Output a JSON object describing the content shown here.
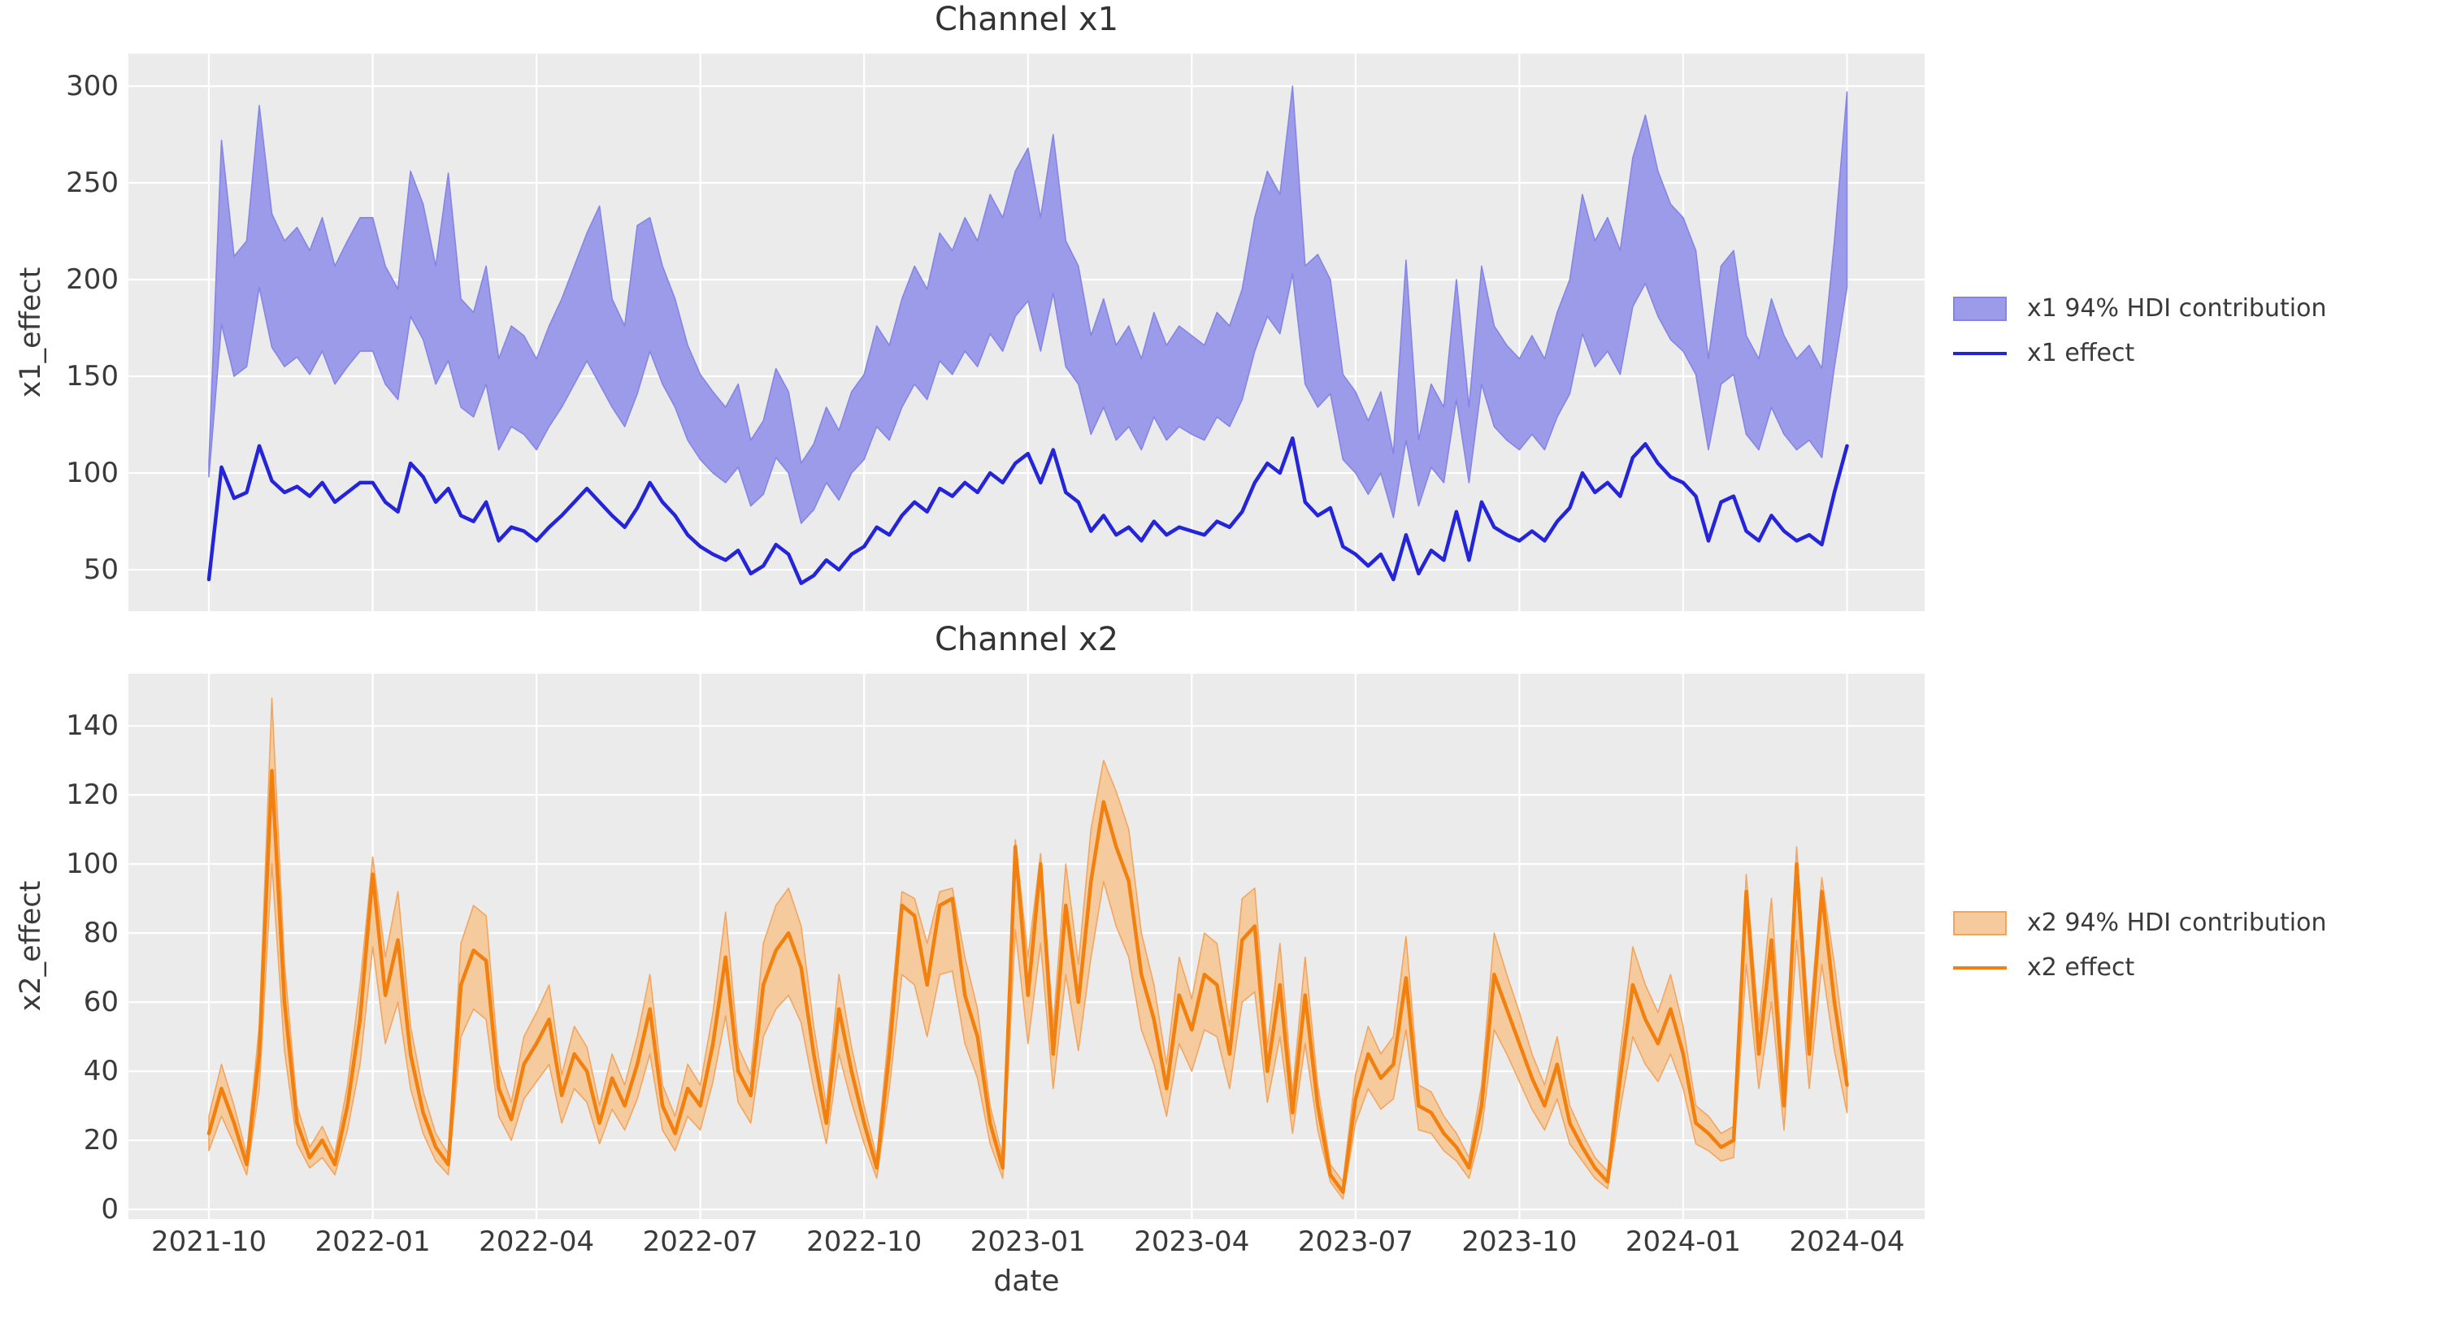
{
  "figure": {
    "background": "#ffffff",
    "axes_background": "#ebebeb",
    "grid_color": "#ffffff",
    "text_color": "#3a3a3a"
  },
  "xaxis": {
    "label": "date",
    "tick_labels": [
      "2021-10",
      "2022-01",
      "2022-04",
      "2022-07",
      "2022-10",
      "2023-01",
      "2023-04",
      "2023-07",
      "2023-10",
      "2024-01",
      "2024-04"
    ]
  },
  "chart_data": [
    {
      "type": "line",
      "channel": "x1",
      "title": "Channel x1",
      "ylabel": "x1_effect",
      "ylim": [
        28.6,
        316.8
      ],
      "yticks": [
        50,
        100,
        150,
        200,
        250,
        300
      ],
      "grid": true,
      "x_start_date": "2021-10-03",
      "x_freq": "weekly",
      "n_points": 131,
      "legend": [
        {
          "label": "x1 94% HDI contribution",
          "type": "patch"
        },
        {
          "label": "x1 effect",
          "type": "line"
        }
      ],
      "colors": {
        "line": "#2424d9",
        "band_fill": "#9b9be9",
        "band_edge": "#8585e5"
      },
      "series": [
        {
          "name": "x1 effect",
          "values": [
            45,
            103,
            87,
            90,
            114,
            96,
            90,
            93,
            88,
            95,
            85,
            90,
            95,
            95,
            85,
            80,
            105,
            98,
            85,
            92,
            78,
            75,
            85,
            65,
            72,
            70,
            65,
            72,
            78,
            85,
            92,
            85,
            78,
            72,
            82,
            95,
            85,
            78,
            68,
            62,
            58,
            55,
            60,
            48,
            52,
            63,
            58,
            43,
            47,
            55,
            50,
            58,
            62,
            72,
            68,
            78,
            85,
            80,
            92,
            88,
            95,
            90,
            100,
            95,
            105,
            110,
            95,
            112,
            90,
            85,
            70,
            78,
            68,
            72,
            65,
            75,
            68,
            72,
            70,
            68,
            75,
            72,
            80,
            95,
            105,
            100,
            118,
            85,
            78,
            82,
            62,
            58,
            52,
            58,
            45,
            68,
            48,
            60,
            55,
            80,
            55,
            85,
            72,
            68,
            65,
            70,
            65,
            75,
            82,
            100,
            90,
            95,
            88,
            108,
            115,
            105,
            98,
            95,
            88,
            65,
            85,
            88,
            70,
            65,
            78,
            70,
            65,
            68,
            63,
            90,
            114
          ]
        },
        {
          "name": "x1 94% HDI lower",
          "values": [
            98,
            177,
            150,
            155,
            196,
            165,
            155,
            160,
            151,
            163,
            146,
            155,
            163,
            163,
            146,
            138,
            181,
            169,
            146,
            158,
            134,
            129,
            146,
            112,
            124,
            120,
            112,
            124,
            134,
            146,
            158,
            146,
            134,
            124,
            141,
            163,
            146,
            134,
            117,
            107,
            100,
            95,
            103,
            83,
            89,
            108,
            100,
            74,
            81,
            95,
            86,
            100,
            107,
            124,
            117,
            134,
            146,
            138,
            158,
            151,
            163,
            155,
            172,
            163,
            181,
            189,
            163,
            193,
            155,
            146,
            120,
            134,
            117,
            124,
            112,
            129,
            117,
            124,
            120,
            117,
            129,
            124,
            138,
            163,
            181,
            172,
            203,
            146,
            134,
            141,
            107,
            100,
            89,
            100,
            77,
            117,
            83,
            103,
            95,
            138,
            95,
            146,
            124,
            117,
            112,
            120,
            112,
            129,
            141,
            172,
            155,
            163,
            151,
            186,
            198,
            181,
            169,
            163,
            151,
            112,
            146,
            151,
            120,
            112,
            134,
            120,
            112,
            117,
            108,
            155,
            196
          ]
        },
        {
          "name": "x1 94% HDI upper",
          "values": [
            106,
            272,
            212,
            220,
            290,
            234,
            220,
            227,
            215,
            232,
            207,
            220,
            232,
            232,
            207,
            195,
            256,
            239,
            207,
            255,
            190,
            183,
            207,
            159,
            176,
            171,
            159,
            176,
            190,
            207,
            224,
            238,
            190,
            176,
            228,
            232,
            207,
            190,
            166,
            151,
            142,
            134,
            146,
            117,
            127,
            154,
            142,
            105,
            115,
            134,
            122,
            142,
            151,
            176,
            166,
            190,
            207,
            195,
            224,
            215,
            232,
            220,
            244,
            232,
            256,
            268,
            232,
            275,
            220,
            207,
            171,
            190,
            166,
            176,
            159,
            183,
            166,
            176,
            171,
            166,
            183,
            176,
            195,
            232,
            256,
            244,
            300,
            207,
            213,
            200,
            151,
            142,
            127,
            142,
            110,
            210,
            117,
            146,
            134,
            200,
            134,
            207,
            176,
            166,
            159,
            171,
            159,
            183,
            200,
            244,
            220,
            232,
            215,
            263,
            285,
            256,
            239,
            232,
            215,
            159,
            207,
            215,
            171,
            159,
            190,
            171,
            159,
            166,
            154,
            220,
            297
          ]
        }
      ]
    },
    {
      "type": "line",
      "channel": "x2",
      "title": "Channel x2",
      "ylabel": "x2_effect",
      "ylim": [
        -2.8,
        155.1
      ],
      "yticks": [
        0,
        20,
        40,
        60,
        80,
        100,
        120,
        140
      ],
      "grid": true,
      "x_start_date": "2021-10-03",
      "x_freq": "weekly",
      "n_points": 131,
      "legend": [
        {
          "label": "x2 94% HDI contribution",
          "type": "patch"
        },
        {
          "label": "x2 effect",
          "type": "line"
        }
      ],
      "colors": {
        "line": "#f1800f",
        "band_fill": "#f5cb9e",
        "band_edge": "#f2a55f"
      },
      "series": [
        {
          "name": "x2 effect",
          "values": [
            22,
            35,
            25,
            13,
            45,
            127,
            60,
            25,
            15,
            20,
            13,
            30,
            55,
            97,
            62,
            78,
            45,
            28,
            18,
            13,
            65,
            75,
            72,
            35,
            26,
            42,
            48,
            55,
            33,
            45,
            40,
            25,
            38,
            30,
            42,
            58,
            30,
            22,
            35,
            30,
            48,
            73,
            40,
            33,
            65,
            75,
            80,
            70,
            45,
            25,
            58,
            40,
            25,
            12,
            45,
            88,
            85,
            65,
            88,
            90,
            62,
            50,
            25,
            12,
            105,
            62,
            100,
            45,
            88,
            60,
            95,
            118,
            105,
            95,
            68,
            55,
            35,
            62,
            52,
            68,
            65,
            45,
            78,
            82,
            40,
            65,
            28,
            62,
            30,
            10,
            5,
            32,
            45,
            38,
            42,
            67,
            30,
            28,
            22,
            18,
            12,
            30,
            68,
            58,
            48,
            38,
            30,
            42,
            25,
            18,
            12,
            8,
            38,
            65,
            55,
            48,
            58,
            45,
            25,
            22,
            18,
            20,
            92,
            45,
            78,
            30,
            100,
            45,
            92,
            60,
            36
          ]
        },
        {
          "name": "x2 94% HDI lower",
          "values": [
            17,
            27,
            19,
            10,
            35,
            100,
            46,
            19,
            12,
            15,
            10,
            23,
            42,
            76,
            48,
            60,
            35,
            22,
            14,
            10,
            50,
            58,
            55,
            27,
            20,
            32,
            37,
            42,
            25,
            35,
            31,
            19,
            29,
            23,
            32,
            45,
            23,
            17,
            27,
            23,
            37,
            56,
            31,
            25,
            50,
            58,
            62,
            54,
            35,
            19,
            45,
            31,
            19,
            9,
            35,
            68,
            65,
            50,
            68,
            69,
            48,
            38,
            19,
            9,
            81,
            48,
            77,
            35,
            68,
            46,
            73,
            95,
            82,
            73,
            52,
            42,
            27,
            48,
            40,
            52,
            50,
            35,
            60,
            63,
            31,
            50,
            22,
            48,
            23,
            8,
            3,
            25,
            35,
            29,
            32,
            52,
            23,
            22,
            17,
            14,
            9,
            23,
            52,
            45,
            37,
            29,
            23,
            32,
            19,
            14,
            9,
            6,
            29,
            50,
            42,
            37,
            45,
            35,
            19,
            17,
            14,
            15,
            71,
            35,
            60,
            23,
            78,
            35,
            71,
            46,
            28
          ]
        },
        {
          "name": "x2 94% HDI upper",
          "values": [
            27,
            42,
            30,
            16,
            53,
            148,
            71,
            30,
            18,
            24,
            16,
            36,
            65,
            102,
            73,
            92,
            53,
            34,
            22,
            16,
            77,
            88,
            85,
            42,
            31,
            50,
            57,
            65,
            39,
            53,
            47,
            30,
            45,
            36,
            50,
            68,
            36,
            27,
            42,
            36,
            57,
            86,
            47,
            39,
            77,
            88,
            93,
            82,
            53,
            30,
            68,
            47,
            30,
            15,
            53,
            92,
            90,
            77,
            92,
            93,
            73,
            58,
            30,
            15,
            107,
            73,
            103,
            53,
            100,
            71,
            110,
            130,
            121,
            110,
            80,
            65,
            42,
            73,
            61,
            80,
            77,
            53,
            90,
            93,
            47,
            77,
            34,
            73,
            36,
            13,
            8,
            39,
            53,
            45,
            50,
            79,
            36,
            34,
            27,
            22,
            15,
            36,
            80,
            68,
            57,
            45,
            36,
            50,
            30,
            22,
            15,
            11,
            45,
            76,
            65,
            57,
            68,
            53,
            30,
            27,
            22,
            24,
            97,
            53,
            90,
            36,
            105,
            53,
            96,
            71,
            42
          ]
        }
      ]
    }
  ]
}
